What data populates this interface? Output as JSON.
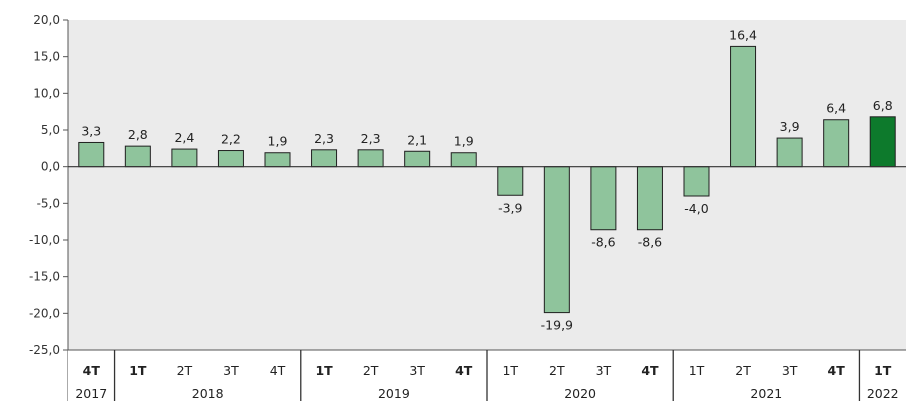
{
  "chart_data": {
    "type": "bar",
    "title": "",
    "xlabel": "",
    "ylabel": "",
    "ylim": [
      -25,
      20
    ],
    "yticks": [
      "20,0",
      "15,0",
      "10,0",
      "5,0",
      "0,0",
      "-5,0",
      "-10,0",
      "-15,0",
      "-20,0",
      "-25,0"
    ],
    "grid": false,
    "categories": [
      {
        "quarter": "4T",
        "year": "2017",
        "value": 3.3,
        "label": "3,3",
        "highlight": false
      },
      {
        "quarter": "1T",
        "year": "2018",
        "value": 2.8,
        "label": "2,8",
        "highlight": false
      },
      {
        "quarter": "2T",
        "year": "2018",
        "value": 2.4,
        "label": "2,4",
        "highlight": false
      },
      {
        "quarter": "3T",
        "year": "2018",
        "value": 2.2,
        "label": "2,2",
        "highlight": false
      },
      {
        "quarter": "4T",
        "year": "2018",
        "value": 1.9,
        "label": "1,9",
        "highlight": false
      },
      {
        "quarter": "1T",
        "year": "2019",
        "value": 2.3,
        "label": "2,3",
        "highlight": false
      },
      {
        "quarter": "2T",
        "year": "2019",
        "value": 2.3,
        "label": "2,3",
        "highlight": false
      },
      {
        "quarter": "3T",
        "year": "2019",
        "value": 2.1,
        "label": "2,1",
        "highlight": false
      },
      {
        "quarter": "4T",
        "year": "2019",
        "value": 1.9,
        "label": "1,9",
        "highlight": false
      },
      {
        "quarter": "1T",
        "year": "2020",
        "value": -3.9,
        "label": "-3,9",
        "highlight": false
      },
      {
        "quarter": "2T",
        "year": "2020",
        "value": -19.9,
        "label": "-19,9",
        "highlight": false
      },
      {
        "quarter": "3T",
        "year": "2020",
        "value": -8.6,
        "label": "-8,6",
        "highlight": false
      },
      {
        "quarter": "4T",
        "year": "2020",
        "value": -8.6,
        "label": "-8,6",
        "highlight": false
      },
      {
        "quarter": "1T",
        "year": "2021",
        "value": -4.0,
        "label": "-4,0",
        "highlight": false
      },
      {
        "quarter": "2T",
        "year": "2021",
        "value": 16.4,
        "label": "16,4",
        "highlight": false
      },
      {
        "quarter": "3T",
        "year": "2021",
        "value": 3.9,
        "label": "3,9",
        "highlight": false
      },
      {
        "quarter": "4T",
        "year": "2021",
        "value": 6.4,
        "label": "6,4",
        "highlight": false
      },
      {
        "quarter": "1T",
        "year": "2022",
        "value": 6.8,
        "label": "6,8",
        "highlight": true
      }
    ],
    "years": [
      "2017",
      "2018",
      "2019",
      "2020",
      "2021",
      "2022"
    ],
    "colors": {
      "bar": "#8fc49c",
      "bar_highlight": "#0d7a2c",
      "bar_stroke": "#1f1f1f",
      "plot_background": "#ebebeb",
      "axis": "#555555"
    }
  }
}
